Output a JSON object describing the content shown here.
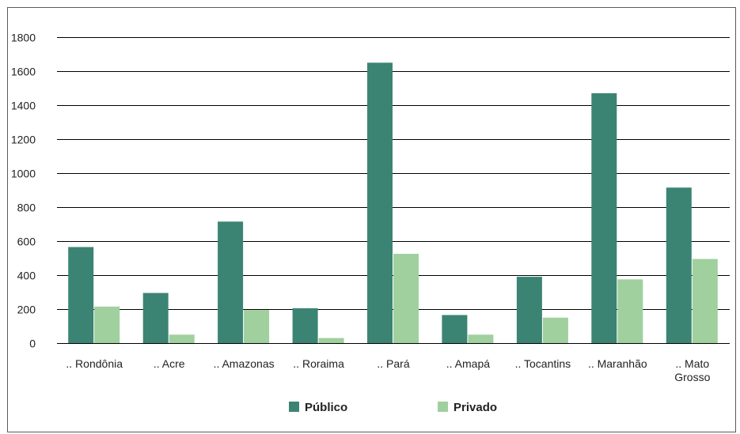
{
  "chart_data": {
    "type": "bar",
    "title": "",
    "xlabel": "",
    "ylabel": "",
    "categories": [
      ".. Rondônia",
      ".. Acre",
      ".. Amazonas",
      ".. Roraima",
      ".. Pará",
      ".. Amapá",
      ".. Tocantins",
      ".. Maranhão",
      ".. Mato Grosso"
    ],
    "category_lines": [
      [
        ".. Rondônia"
      ],
      [
        ".. Acre"
      ],
      [
        ".. Amazonas"
      ],
      [
        ".. Roraima"
      ],
      [
        ".. Pará"
      ],
      [
        ".. Amapá"
      ],
      [
        ".. Tocantins"
      ],
      [
        ".. Maranhão"
      ],
      [
        ".. Mato",
        "Grosso"
      ]
    ],
    "series": [
      {
        "name": "Público",
        "color": "#3b8474",
        "values": [
          565,
          295,
          715,
          205,
          1650,
          165,
          390,
          1470,
          915
        ]
      },
      {
        "name": "Privado",
        "color": "#9fd09e",
        "values": [
          215,
          50,
          195,
          30,
          525,
          50,
          150,
          375,
          495
        ]
      }
    ],
    "ylim": [
      0,
      1800
    ],
    "yticks": [
      0,
      200,
      400,
      600,
      800,
      1000,
      1200,
      1400,
      1600,
      1800
    ],
    "grid": true,
    "legend_position": "bottom"
  }
}
